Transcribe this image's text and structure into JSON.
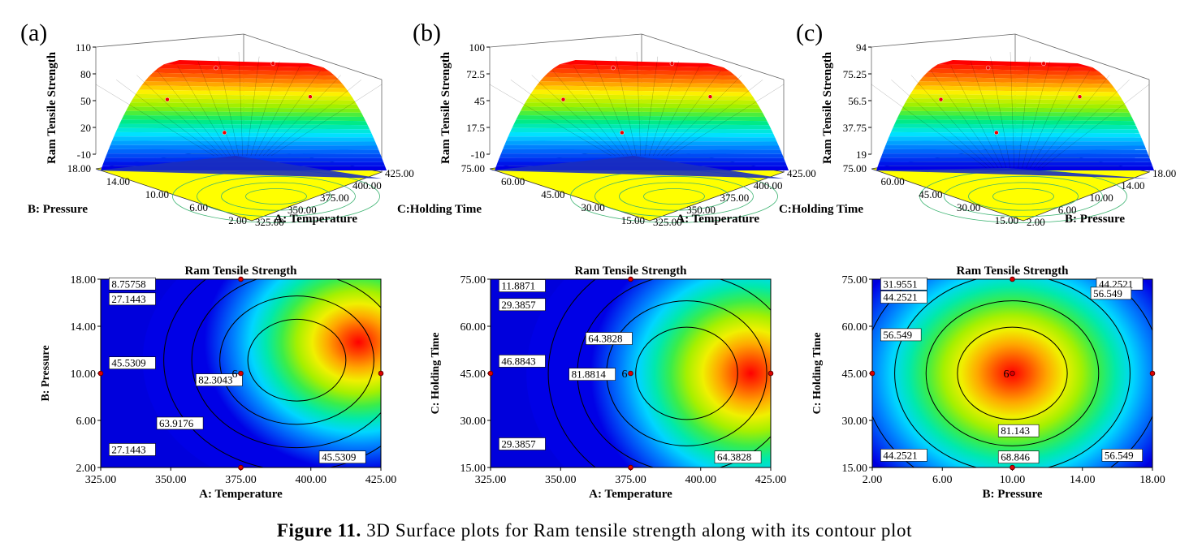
{
  "caption": {
    "label": "Figure 11.",
    "text": " 3D Surface plots for Ram tensile strength along with its contour plot"
  },
  "panels": [
    {
      "label": "(a)",
      "surface": {
        "zlabel": "Ram Tensile Strength",
        "zticks": [
          "110",
          "80",
          "50",
          "20",
          "-10"
        ],
        "left_axis_label": "B: Pressure",
        "left_ticks": [
          "18.00",
          "14.00",
          "10.00",
          "6.00",
          "2.00"
        ],
        "right_axis_label": "A: Temperature",
        "right_ticks": [
          "325.00",
          "350.00",
          "375.00",
          "400.00",
          "425.00"
        ]
      },
      "contour": {
        "title": "Ram Tensile Strength",
        "xlabel": "A: Temperature",
        "ylabel": "B: Pressure",
        "xticks": [
          "325.00",
          "350.00",
          "375.00",
          "400.00",
          "425.00"
        ],
        "yticks": [
          "2.00",
          "6.00",
          "10.00",
          "14.00",
          "18.00"
        ],
        "center_count": "6",
        "contour_labels": [
          "8.75758",
          "27.1443",
          "45.5309",
          "82.3043",
          "63.9176",
          "27.1443",
          "45.5309"
        ]
      }
    },
    {
      "label": "(b)",
      "surface": {
        "zlabel": "Ram Tensile Strength",
        "zticks": [
          "100",
          "72.5",
          "45",
          "17.5",
          "-10"
        ],
        "left_axis_label": "C:Holding Time",
        "left_ticks": [
          "75.00",
          "60.00",
          "45.00",
          "30.00",
          "15.00"
        ],
        "right_axis_label": "A: Temperature",
        "right_ticks": [
          "325.00",
          "350.00",
          "375.00",
          "400.00",
          "425.00"
        ]
      },
      "contour": {
        "title": "Ram Tensile Strength",
        "xlabel": "A: Temperature",
        "ylabel": "C: Holding Time",
        "xticks": [
          "325.00",
          "350.00",
          "375.00",
          "400.00",
          "425.00"
        ],
        "yticks": [
          "15.00",
          "30.00",
          "45.00",
          "60.00",
          "75.00"
        ],
        "center_count": "6",
        "contour_labels": [
          "11.8871",
          "29.3857",
          "64.3828",
          "46.8843",
          "81.8814",
          "29.3857",
          "64.3828"
        ]
      }
    },
    {
      "label": "(c)",
      "surface": {
        "zlabel": "Ram Tensile Strength",
        "zticks": [
          "94",
          "75.25",
          "56.5",
          "37.75",
          "19"
        ],
        "left_axis_label": "C:Holding Time",
        "left_ticks": [
          "75.00",
          "60.00",
          "45.00",
          "30.00",
          "15.00"
        ],
        "right_axis_label": "B: Pressure",
        "right_ticks": [
          "2.00",
          "6.00",
          "10.00",
          "14.00",
          "18.00"
        ]
      },
      "contour": {
        "title": "Ram Tensile Strength",
        "xlabel": "B: Pressure",
        "ylabel": "C: Holding Time",
        "xticks": [
          "2.00",
          "6.00",
          "10.00",
          "14.00",
          "18.00"
        ],
        "yticks": [
          "15.00",
          "30.00",
          "45.00",
          "60.00",
          "75.00"
        ],
        "center_count": "6",
        "contour_labels": [
          "31.9551",
          "44.2521",
          "56.549",
          "44.2521",
          "56.549",
          "81.143",
          "68.846",
          "44.2521",
          "56.549"
        ]
      }
    }
  ],
  "chart_data": [
    {
      "type": "heatmap",
      "title": "Ram Tensile Strength",
      "xlabel": "A: Temperature",
      "ylabel": "B: Pressure",
      "xlim": [
        325,
        425
      ],
      "ylim": [
        2,
        18
      ],
      "contour_levels": [
        8.75758,
        27.1443,
        45.5309,
        63.9176,
        82.3043
      ],
      "optimum_region": {
        "x": 395,
        "y": 11
      },
      "design_points": [
        [
          375,
          10
        ],
        [
          375,
          18
        ],
        [
          375,
          2
        ],
        [
          325,
          10
        ],
        [
          425,
          10
        ]
      ]
    },
    {
      "type": "heatmap",
      "title": "Ram Tensile Strength",
      "xlabel": "A: Temperature",
      "ylabel": "C: Holding Time",
      "xlim": [
        325,
        425
      ],
      "ylim": [
        15,
        75
      ],
      "contour_levels": [
        11.8871,
        29.3857,
        46.8843,
        64.3828,
        81.8814
      ],
      "optimum_region": {
        "x": 395,
        "y": 45
      },
      "design_points": [
        [
          375,
          45
        ],
        [
          375,
          75
        ],
        [
          375,
          15
        ],
        [
          325,
          45
        ],
        [
          425,
          45
        ]
      ]
    },
    {
      "type": "heatmap",
      "title": "Ram Tensile Strength",
      "xlabel": "B: Pressure",
      "ylabel": "C: Holding Time",
      "xlim": [
        2,
        18
      ],
      "ylim": [
        15,
        75
      ],
      "contour_levels": [
        31.9551,
        44.2521,
        56.549,
        68.846,
        81.143
      ],
      "optimum_region": {
        "x": 10,
        "y": 45
      },
      "design_points": [
        [
          10,
          45
        ],
        [
          10,
          75
        ],
        [
          10,
          15
        ],
        [
          2,
          45
        ],
        [
          18,
          45
        ]
      ]
    }
  ]
}
